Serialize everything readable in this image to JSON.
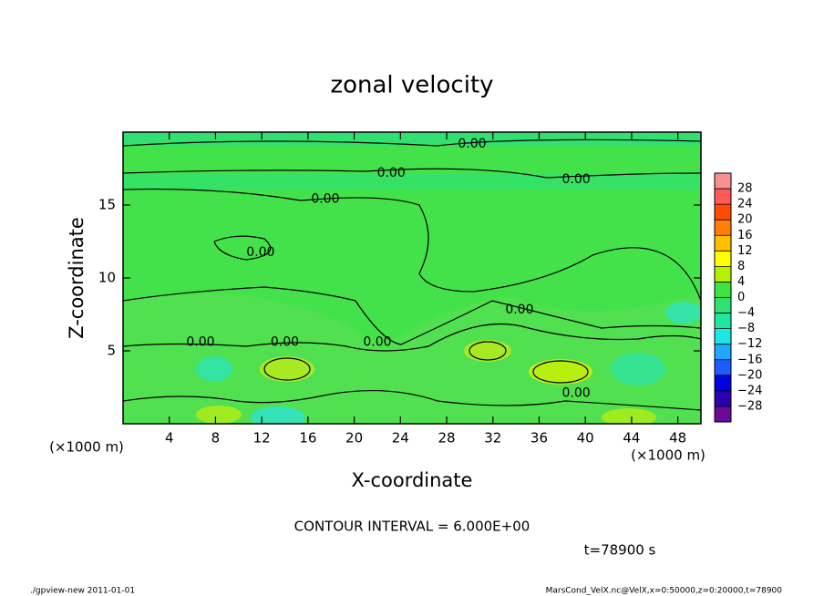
{
  "chart_data": {
    "type": "contour",
    "title": "zonal velocity",
    "x_label": "X-coordinate",
    "y_label": "Z-coordinate",
    "x_unit": "(×1000 m)",
    "xlim": [
      0,
      50
    ],
    "xticks": [
      4,
      8,
      12,
      16,
      20,
      24,
      28,
      32,
      36,
      40,
      44,
      48
    ],
    "ylim": [
      0,
      20
    ],
    "yticks": [
      5,
      10,
      15
    ],
    "contour_labels": [
      {
        "text": "0.00",
        "x": 30.2,
        "y": 19.2
      },
      {
        "text": "0.00",
        "x": 23.2,
        "y": 17.2
      },
      {
        "text": "0.00",
        "x": 17.5,
        "y": 15.4
      },
      {
        "text": "0.00",
        "x": 39.2,
        "y": 16.75
      },
      {
        "text": "0.00",
        "x": 11.9,
        "y": 11.75
      },
      {
        "text": "0.00",
        "x": 6.7,
        "y": 5.6
      },
      {
        "text": "0.00",
        "x": 14.0,
        "y": 5.6
      },
      {
        "text": "0.00",
        "x": 22.0,
        "y": 5.6
      },
      {
        "text": "0.00",
        "x": 34.3,
        "y": 7.8
      },
      {
        "text": "0.00",
        "x": 39.2,
        "y": 2.1
      }
    ],
    "colorbar": {
      "lim": [
        -32,
        32
      ],
      "ticks": [
        28,
        24,
        20,
        16,
        12,
        8,
        4,
        0,
        {
          "value": -4,
          "label": "−4"
        },
        {
          "value": -8,
          "label": "−8"
        },
        {
          "value": -12,
          "label": "−12"
        },
        {
          "value": -16,
          "label": "−16"
        },
        {
          "value": -20,
          "label": "−20"
        },
        {
          "value": -24,
          "label": "−24"
        },
        {
          "value": -28,
          "label": "−28"
        }
      ],
      "colors": [
        "#6a0a9a",
        "#2a00b0",
        "#0000e0",
        "#1e5cff",
        "#1ea8ff",
        "#1ee6e6",
        "#1ee8a0",
        "#30e070",
        "#3ce43c",
        "#b4f000",
        "#ffff00",
        "#ffc000",
        "#ff8000",
        "#ff4a00",
        "#ff5a5a",
        "#f79090"
      ]
    },
    "contour_interval": "CONTOUR INTERVAL = 6.000E+00",
    "time": "t=78900 s"
  },
  "footer": {
    "left": "./gpview-new   2011-01-01",
    "right": "MarsCond_VelX.nc@VelX,x=0:50000,z=0:20000,t=78900"
  }
}
